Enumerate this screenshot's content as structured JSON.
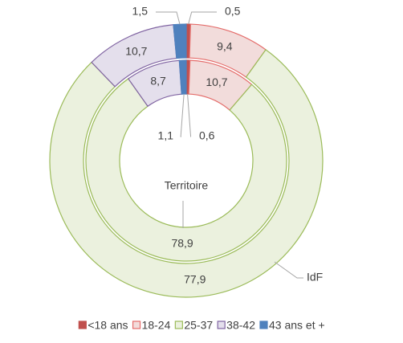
{
  "chart_data": {
    "type": "doughnut",
    "categories": [
      "<18 ans",
      "18-24",
      "25-37",
      "38-42",
      "43 ans et +"
    ],
    "colors": [
      "#c0504d",
      "#f2dcdb",
      "#ebf1de",
      "#e4dfec",
      "#4f81bd"
    ],
    "borders": [
      "#c0504d",
      "#e46c6a",
      "#9bbb59",
      "#8064a2",
      "#4f81bd"
    ],
    "series": [
      {
        "name": "IdF",
        "values": [
          0.5,
          9.4,
          77.9,
          10.7,
          1.5
        ],
        "value_labels": [
          "0,5",
          "9,4",
          "77,9",
          "10,7",
          "1,5"
        ]
      },
      {
        "name": "Territoire",
        "values": [
          0.6,
          10.7,
          78.9,
          8.7,
          1.1
        ],
        "value_labels": [
          "0,6",
          "10,7",
          "78,9",
          "8,7",
          "1,1"
        ]
      }
    ]
  }
}
